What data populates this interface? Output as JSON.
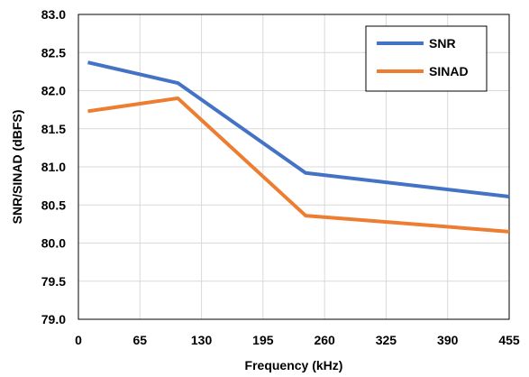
{
  "chart_data": {
    "type": "line",
    "xlabel": "Frequency (kHz)",
    "ylabel": "SNR/SINAD (dBFS)",
    "xlim": [
      0,
      455
    ],
    "ylim": [
      79.0,
      83.0
    ],
    "x_ticks": [
      0,
      65,
      130,
      195,
      260,
      325,
      390,
      455
    ],
    "y_ticks": [
      "79.0",
      "79.5",
      "80.0",
      "80.5",
      "81.0",
      "81.5",
      "82.0",
      "82.5",
      "83.0"
    ],
    "grid": true,
    "legend_position": "top-right",
    "series": [
      {
        "name": "SNR",
        "color": "#4472C4",
        "x": [
          10,
          105,
          240,
          455
        ],
        "y": [
          82.37,
          82.1,
          80.92,
          80.61
        ]
      },
      {
        "name": "SINAD",
        "color": "#ED7D31",
        "x": [
          10,
          105,
          240,
          455
        ],
        "y": [
          81.73,
          81.9,
          80.36,
          80.15
        ]
      }
    ]
  }
}
